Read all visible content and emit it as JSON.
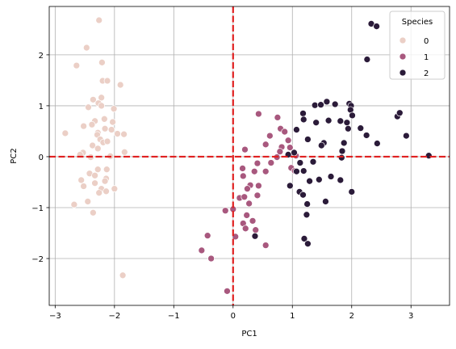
{
  "chart_data": {
    "type": "scatter",
    "title": "",
    "xlabel": "PC1",
    "ylabel": "PC2",
    "xlim": [
      -3.1,
      3.65
    ],
    "ylim": [
      -2.92,
      2.95
    ],
    "xticks": [
      -3,
      -2,
      -1,
      0,
      1,
      2,
      3
    ],
    "yticks": [
      -2,
      -1,
      0,
      1,
      2
    ],
    "grid": true,
    "reference_lines": [
      {
        "orientation": "vertical",
        "value": 0,
        "color": "#e02020",
        "style": "dashed"
      },
      {
        "orientation": "horizontal",
        "value": 0,
        "color": "#e02020",
        "style": "dashed"
      }
    ],
    "legend": {
      "title": "Species",
      "position": "top-right"
    },
    "series": [
      {
        "name": "0",
        "color": "#ebcfc6",
        "points": [
          [
            -2.26,
            2.68
          ],
          [
            -2.47,
            2.14
          ],
          [
            -2.64,
            1.79
          ],
          [
            -2.21,
            1.85
          ],
          [
            -2.2,
            1.49
          ],
          [
            -2.12,
            1.49
          ],
          [
            -1.9,
            1.41
          ],
          [
            -2.36,
            1.12
          ],
          [
            -2.22,
            1.16
          ],
          [
            -2.27,
            1.05
          ],
          [
            -2.22,
            1.0
          ],
          [
            -2.44,
            0.97
          ],
          [
            -2.01,
            0.94
          ],
          [
            -2.17,
            0.74
          ],
          [
            -2.33,
            0.7
          ],
          [
            -2.52,
            0.6
          ],
          [
            -2.38,
            0.63
          ],
          [
            -2.03,
            0.68
          ],
          [
            -2.28,
            0.47
          ],
          [
            -2.16,
            0.55
          ],
          [
            -2.05,
            0.53
          ],
          [
            -1.95,
            0.45
          ],
          [
            -1.84,
            0.44
          ],
          [
            -2.29,
            0.43
          ],
          [
            -2.83,
            0.46
          ],
          [
            -2.24,
            0.34
          ],
          [
            -2.19,
            0.28
          ],
          [
            -2.12,
            0.3
          ],
          [
            -2.37,
            0.22
          ],
          [
            -2.28,
            0.16
          ],
          [
            -1.83,
            0.09
          ],
          [
            -2.53,
            0.08
          ],
          [
            -2.58,
            0.04
          ],
          [
            -2.4,
            -0.01
          ],
          [
            -2.07,
            0.01
          ],
          [
            -2.28,
            -0.25
          ],
          [
            -2.13,
            -0.25
          ],
          [
            -2.42,
            -0.33
          ],
          [
            -2.33,
            -0.37
          ],
          [
            -2.14,
            -0.43
          ],
          [
            -2.56,
            -0.46
          ],
          [
            -2.16,
            -0.48
          ],
          [
            -2.33,
            -0.52
          ],
          [
            -2.22,
            -0.63
          ],
          [
            -2.0,
            -0.63
          ],
          [
            -2.14,
            -0.68
          ],
          [
            -2.52,
            -0.58
          ],
          [
            -2.26,
            -0.71
          ],
          [
            -2.45,
            -0.88
          ],
          [
            -2.68,
            -0.94
          ],
          [
            -2.36,
            -1.1
          ],
          [
            -1.86,
            -2.33
          ]
        ]
      },
      {
        "name": "1",
        "color": "#a8587e",
        "points": [
          [
            0.75,
            0.77
          ],
          [
            0.43,
            0.84
          ],
          [
            0.8,
            0.55
          ],
          [
            0.87,
            0.49
          ],
          [
            0.55,
            0.24
          ],
          [
            0.62,
            0.41
          ],
          [
            0.93,
            0.32
          ],
          [
            0.2,
            0.14
          ],
          [
            0.82,
            0.19
          ],
          [
            0.96,
            0.18
          ],
          [
            1.02,
            0.06
          ],
          [
            1.06,
            0.02
          ],
          [
            0.79,
            0.1
          ],
          [
            0.74,
            -0.01
          ],
          [
            0.64,
            -0.12
          ],
          [
            0.41,
            -0.13
          ],
          [
            0.16,
            -0.23
          ],
          [
            0.17,
            -0.38
          ],
          [
            0.36,
            -0.29
          ],
          [
            0.55,
            -0.29
          ],
          [
            0.98,
            -0.22
          ],
          [
            1.04,
            -0.28
          ],
          [
            0.29,
            -0.56
          ],
          [
            0.43,
            -0.57
          ],
          [
            0.24,
            -0.63
          ],
          [
            0.11,
            -0.81
          ],
          [
            0.19,
            -0.79
          ],
          [
            0.41,
            -0.76
          ],
          [
            0.27,
            -0.92
          ],
          [
            -0.13,
            -1.06
          ],
          [
            0.0,
            -1.03
          ],
          [
            0.23,
            -1.15
          ],
          [
            0.33,
            -1.26
          ],
          [
            0.17,
            -1.31
          ],
          [
            0.38,
            -1.44
          ],
          [
            0.21,
            -1.41
          ],
          [
            0.04,
            -1.57
          ],
          [
            0.55,
            -1.74
          ],
          [
            -0.43,
            -1.55
          ],
          [
            -0.53,
            -1.84
          ],
          [
            -0.37,
            -2.0
          ],
          [
            -0.1,
            -2.64
          ]
        ]
      },
      {
        "name": "2",
        "color": "#2b1b39",
        "points": [
          [
            2.33,
            2.61
          ],
          [
            2.42,
            2.56
          ],
          [
            2.26,
            1.91
          ],
          [
            1.38,
            1.01
          ],
          [
            1.48,
            1.02
          ],
          [
            1.58,
            1.08
          ],
          [
            1.72,
            1.03
          ],
          [
            1.96,
            1.04
          ],
          [
            1.99,
            1.0
          ],
          [
            1.98,
            0.92
          ],
          [
            2.01,
            0.81
          ],
          [
            1.61,
            0.71
          ],
          [
            1.81,
            0.7
          ],
          [
            1.92,
            0.67
          ],
          [
            1.4,
            0.67
          ],
          [
            1.18,
            0.85
          ],
          [
            1.19,
            0.73
          ],
          [
            1.94,
            0.55
          ],
          [
            2.15,
            0.56
          ],
          [
            1.07,
            0.53
          ],
          [
            1.26,
            0.34
          ],
          [
            2.25,
            0.42
          ],
          [
            2.43,
            0.26
          ],
          [
            1.87,
            0.27
          ],
          [
            1.53,
            0.27
          ],
          [
            1.49,
            0.22
          ],
          [
            2.77,
            0.79
          ],
          [
            2.81,
            0.86
          ],
          [
            2.92,
            0.41
          ],
          [
            1.03,
            0.08
          ],
          [
            0.93,
            0.04
          ],
          [
            3.3,
            0.02
          ],
          [
            1.13,
            -0.12
          ],
          [
            1.19,
            -0.28
          ],
          [
            1.35,
            -0.1
          ],
          [
            1.83,
            -0.02
          ],
          [
            1.84,
            0.11
          ],
          [
            1.29,
            -0.48
          ],
          [
            1.45,
            -0.45
          ],
          [
            1.65,
            -0.39
          ],
          [
            1.81,
            -0.46
          ],
          [
            1.07,
            -0.29
          ],
          [
            0.96,
            -0.57
          ],
          [
            1.12,
            -0.69
          ],
          [
            1.18,
            -0.75
          ],
          [
            1.56,
            -0.88
          ],
          [
            1.25,
            -0.93
          ],
          [
            2.0,
            -0.69
          ],
          [
            1.24,
            -1.14
          ],
          [
            0.37,
            -1.56
          ],
          [
            1.2,
            -1.61
          ],
          [
            1.26,
            -1.71
          ]
        ]
      }
    ]
  }
}
